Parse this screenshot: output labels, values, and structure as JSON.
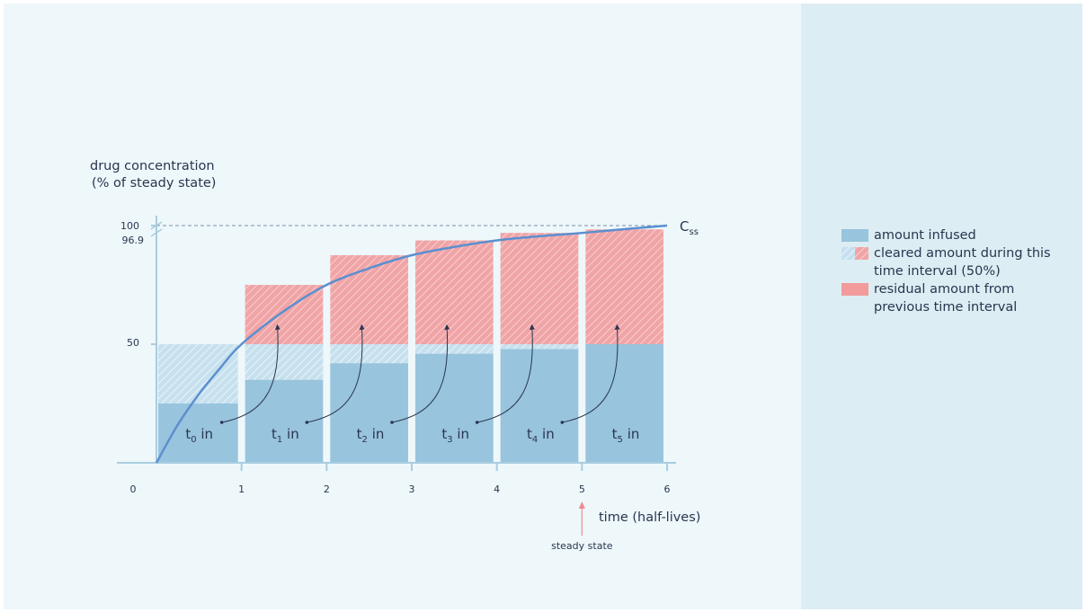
{
  "colors": {
    "infused": "#98c4dd",
    "cleared_hatch_base_blue": "#c7e0ee",
    "residual": "#f0a4a6",
    "curve": "#5b8fd0",
    "axis": "#a8cde2",
    "arrow": "#2a3550",
    "steady_arrow": "#ee8b8d"
  },
  "chart_data": {
    "type": "bar",
    "ylabel": [
      "drug concentration",
      "(% of steady state)"
    ],
    "xlabel": "time (half-lives)",
    "y_ticks": [
      "100",
      "96.9",
      "50"
    ],
    "x_ticks": [
      "0",
      "1",
      "2",
      "3",
      "4",
      "5",
      "6"
    ],
    "ylim": [
      0,
      100
    ],
    "xlim": [
      0,
      6
    ],
    "intervals": [
      {
        "label_main": "t",
        "label_sub": "0",
        "label_suffix": " in",
        "start": 0,
        "end": 1,
        "infused_remaining": 25,
        "cleared_from_infused": 25,
        "residual": 0,
        "cleared_from_residual": 0
      },
      {
        "label_main": "t",
        "label_sub": "1",
        "label_suffix": " in",
        "start": 1,
        "end": 2,
        "infused_remaining": 35,
        "cleared_from_infused": 15,
        "residual": 25,
        "cleared_from_residual": 0
      },
      {
        "label_main": "t",
        "label_sub": "2",
        "label_suffix": " in",
        "start": 2,
        "end": 3,
        "infused_remaining": 42,
        "cleared_from_infused": 8,
        "residual": 37.5,
        "cleared_from_residual": 0
      },
      {
        "label_main": "t",
        "label_sub": "3",
        "label_suffix": " in",
        "start": 3,
        "end": 4,
        "infused_remaining": 46,
        "cleared_from_infused": 4,
        "residual": 43.75,
        "cleared_from_residual": 0
      },
      {
        "label_main": "t",
        "label_sub": "4",
        "label_suffix": " in",
        "start": 4,
        "end": 5,
        "infused_remaining": 48,
        "cleared_from_infused": 2,
        "residual": 46.9,
        "cleared_from_residual": 0
      },
      {
        "label_main": "t",
        "label_sub": "5",
        "label_suffix": " in",
        "start": 5,
        "end": 6,
        "infused_remaining": 50,
        "cleared_from_infused": 0,
        "residual": 48.4,
        "cleared_from_residual": 0
      }
    ],
    "curve": {
      "label_main": "C",
      "label_sub": "ss",
      "points": [
        [
          0,
          0
        ],
        [
          0.25,
          16
        ],
        [
          0.5,
          29
        ],
        [
          0.75,
          40
        ],
        [
          1,
          50
        ],
        [
          1.5,
          64
        ],
        [
          2,
          75
        ],
        [
          2.5,
          82
        ],
        [
          3,
          87.5
        ],
        [
          3.5,
          91
        ],
        [
          4,
          93.75
        ],
        [
          4.5,
          95.5
        ],
        [
          5,
          96.9
        ],
        [
          5.5,
          98.5
        ],
        [
          6,
          100
        ]
      ]
    },
    "reference_line": {
      "y": 100,
      "style": "dashed"
    },
    "annotation": {
      "x": 5,
      "text": "steady state"
    }
  },
  "legend": {
    "items": [
      {
        "key": "infused",
        "text": "amount infused"
      },
      {
        "key": "cleared",
        "text": "cleared amount during this time interval (50%)"
      },
      {
        "key": "residual",
        "text": "residual amount from previous time interval"
      }
    ]
  }
}
